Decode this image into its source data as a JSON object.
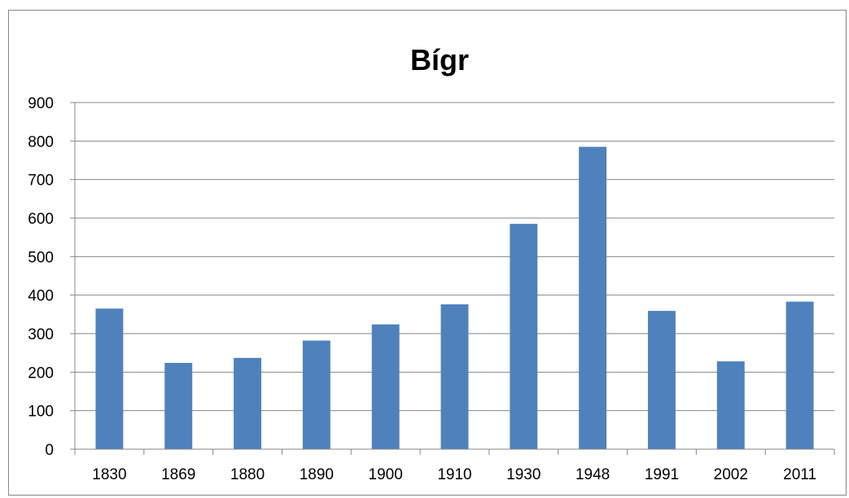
{
  "chart_data": {
    "type": "bar",
    "title": "Bígr",
    "xlabel": "",
    "ylabel": "",
    "categories": [
      "1830",
      "1869",
      "1880",
      "1890",
      "1900",
      "1910",
      "1930",
      "1948",
      "1991",
      "2002",
      "2011"
    ],
    "series": [
      {
        "values": [
          365,
          224,
          237,
          282,
          324,
          376,
          585,
          785,
          359,
          228,
          383
        ]
      }
    ],
    "ylim": [
      0,
      900
    ],
    "yticks": [
      "0",
      "100",
      "200",
      "300",
      "400",
      "500",
      "600",
      "700",
      "800",
      "900"
    ],
    "grid": true,
    "legend": "none",
    "colors": {
      "bar": "#4F81BD",
      "grid": "#868686",
      "axis": "#868686"
    }
  }
}
